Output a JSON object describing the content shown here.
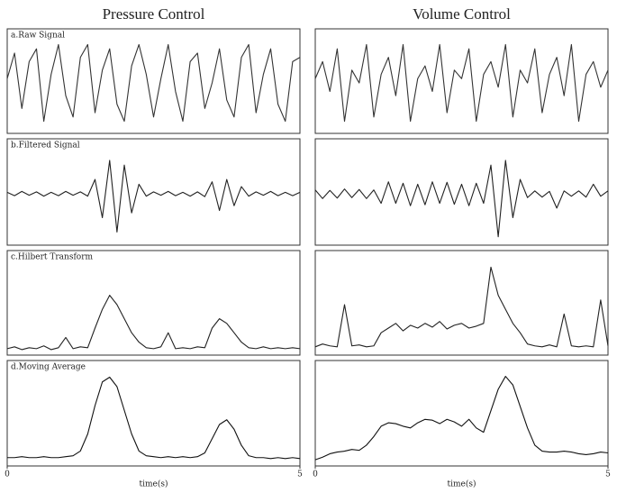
{
  "chart_data": [
    {
      "type": "line",
      "title": "Pressure Control",
      "label": "a.Raw Signal",
      "color": "#333333",
      "xlim": [
        0,
        5
      ],
      "ylim": [
        -1.1,
        1.1
      ],
      "x": [
        0,
        0.125,
        0.25,
        0.375,
        0.5,
        0.625,
        0.75,
        0.875,
        1,
        1.125,
        1.25,
        1.375,
        1.5,
        1.625,
        1.75,
        1.875,
        2,
        2.125,
        2.25,
        2.375,
        2.5,
        2.625,
        2.75,
        2.875,
        3,
        3.125,
        3.25,
        3.375,
        3.5,
        3.625,
        3.75,
        3.875,
        4,
        4.125,
        4.25,
        4.375,
        4.5,
        4.625,
        4.75,
        4.875,
        5
      ],
      "values": [
        0.1,
        0.7,
        -0.6,
        0.5,
        0.8,
        -0.9,
        0.2,
        0.9,
        -0.3,
        -0.8,
        0.6,
        0.9,
        -0.7,
        0.3,
        0.8,
        -0.5,
        -0.9,
        0.4,
        0.9,
        0.2,
        -0.8,
        0.1,
        0.9,
        -0.2,
        -0.9,
        0.5,
        0.7,
        -0.6,
        0.0,
        0.8,
        -0.4,
        -0.8,
        0.6,
        0.9,
        -0.7,
        0.2,
        0.8,
        -0.5,
        -0.9,
        0.5,
        0.6
      ]
    },
    {
      "type": "line",
      "title": "Volume Control",
      "color": "#333333",
      "xlim": [
        0,
        5
      ],
      "ylim": [
        -1.1,
        1.1
      ],
      "x": [
        0,
        0.125,
        0.25,
        0.375,
        0.5,
        0.625,
        0.75,
        0.875,
        1,
        1.125,
        1.25,
        1.375,
        1.5,
        1.625,
        1.75,
        1.875,
        2,
        2.125,
        2.25,
        2.375,
        2.5,
        2.625,
        2.75,
        2.875,
        3,
        3.125,
        3.25,
        3.375,
        3.5,
        3.625,
        3.75,
        3.875,
        4,
        4.125,
        4.25,
        4.375,
        4.5,
        4.625,
        4.75,
        4.875,
        5
      ],
      "values": [
        0.1,
        0.5,
        -0.2,
        0.8,
        -0.9,
        0.3,
        0.0,
        0.9,
        -0.8,
        0.2,
        0.6,
        -0.3,
        0.9,
        -0.9,
        0.1,
        0.4,
        -0.2,
        0.9,
        -0.7,
        0.3,
        0.1,
        0.8,
        -0.9,
        0.2,
        0.5,
        -0.1,
        0.9,
        -0.8,
        0.3,
        0.0,
        0.8,
        -0.7,
        0.2,
        0.6,
        -0.3,
        0.9,
        -0.9,
        0.2,
        0.5,
        -0.1,
        0.3
      ]
    },
    {
      "type": "line",
      "label": "b.Filtered Signal",
      "color": "#222222",
      "xlim": [
        0,
        5
      ],
      "ylim": [
        -1,
        1
      ],
      "x": [
        0,
        0.125,
        0.25,
        0.375,
        0.5,
        0.625,
        0.75,
        0.875,
        1,
        1.125,
        1.25,
        1.375,
        1.5,
        1.625,
        1.75,
        1.875,
        2,
        2.125,
        2.25,
        2.375,
        2.5,
        2.625,
        2.75,
        2.875,
        3,
        3.125,
        3.25,
        3.375,
        3.5,
        3.625,
        3.75,
        3.875,
        4,
        4.125,
        4.25,
        4.375,
        4.5,
        4.625,
        4.75,
        4.875,
        5
      ],
      "values": [
        0.03,
        -0.04,
        0.05,
        -0.03,
        0.04,
        -0.05,
        0.03,
        -0.04,
        0.05,
        -0.03,
        0.04,
        -0.05,
        0.3,
        -0.5,
        0.7,
        -0.8,
        0.6,
        -0.4,
        0.2,
        -0.05,
        0.04,
        -0.03,
        0.05,
        -0.04,
        0.03,
        -0.05,
        0.04,
        -0.06,
        0.25,
        -0.35,
        0.3,
        -0.25,
        0.15,
        -0.05,
        0.04,
        -0.03,
        0.05,
        -0.04,
        0.03,
        -0.04,
        0.03
      ]
    },
    {
      "type": "line",
      "color": "#222222",
      "xlim": [
        0,
        5
      ],
      "ylim": [
        -1,
        1
      ],
      "x": [
        0,
        0.125,
        0.25,
        0.375,
        0.5,
        0.625,
        0.75,
        0.875,
        1,
        1.125,
        1.25,
        1.375,
        1.5,
        1.625,
        1.75,
        1.875,
        2,
        2.125,
        2.25,
        2.375,
        2.5,
        2.625,
        2.75,
        2.875,
        3,
        3.125,
        3.25,
        3.375,
        3.5,
        3.625,
        3.75,
        3.875,
        4,
        4.125,
        4.25,
        4.375,
        4.5,
        4.625,
        4.75,
        4.875,
        5
      ],
      "values": [
        0.08,
        -0.1,
        0.07,
        -0.09,
        0.1,
        -0.08,
        0.09,
        -0.1,
        0.08,
        -0.2,
        0.25,
        -0.2,
        0.22,
        -0.25,
        0.2,
        -0.23,
        0.25,
        -0.2,
        0.24,
        -0.22,
        0.2,
        -0.25,
        0.22,
        -0.2,
        0.6,
        -0.9,
        0.7,
        -0.5,
        0.3,
        -0.08,
        0.06,
        -0.07,
        0.05,
        -0.3,
        0.06,
        -0.05,
        0.06,
        -0.07,
        0.2,
        -0.05,
        0.06
      ]
    },
    {
      "type": "line",
      "label": "c.Hilbert Transform",
      "color": "#222222",
      "xlim": [
        0,
        5
      ],
      "ylim": [
        0,
        1
      ],
      "x": [
        0,
        0.125,
        0.25,
        0.375,
        0.5,
        0.625,
        0.75,
        0.875,
        1,
        1.125,
        1.25,
        1.375,
        1.5,
        1.625,
        1.75,
        1.875,
        2,
        2.125,
        2.25,
        2.375,
        2.5,
        2.625,
        2.75,
        2.875,
        3,
        3.125,
        3.25,
        3.375,
        3.5,
        3.625,
        3.75,
        3.875,
        4,
        4.125,
        4.25,
        4.375,
        4.5,
        4.625,
        4.75,
        4.875,
        5
      ],
      "values": [
        0.03,
        0.05,
        0.02,
        0.04,
        0.03,
        0.06,
        0.02,
        0.04,
        0.15,
        0.03,
        0.05,
        0.04,
        0.25,
        0.45,
        0.6,
        0.5,
        0.35,
        0.2,
        0.1,
        0.04,
        0.03,
        0.05,
        0.2,
        0.03,
        0.04,
        0.03,
        0.05,
        0.04,
        0.25,
        0.35,
        0.3,
        0.2,
        0.1,
        0.04,
        0.03,
        0.05,
        0.03,
        0.04,
        0.03,
        0.04,
        0.03
      ]
    },
    {
      "type": "line",
      "color": "#222222",
      "xlim": [
        0,
        5
      ],
      "ylim": [
        0,
        1
      ],
      "x": [
        0,
        0.125,
        0.25,
        0.375,
        0.5,
        0.625,
        0.75,
        0.875,
        1,
        1.125,
        1.25,
        1.375,
        1.5,
        1.625,
        1.75,
        1.875,
        2,
        2.125,
        2.25,
        2.375,
        2.5,
        2.625,
        2.75,
        2.875,
        3,
        3.125,
        3.25,
        3.375,
        3.5,
        3.625,
        3.75,
        3.875,
        4,
        4.125,
        4.25,
        4.375,
        4.5,
        4.625,
        4.75,
        4.875,
        5
      ],
      "values": [
        0.05,
        0.08,
        0.06,
        0.05,
        0.5,
        0.06,
        0.07,
        0.05,
        0.06,
        0.2,
        0.25,
        0.3,
        0.22,
        0.28,
        0.25,
        0.3,
        0.26,
        0.32,
        0.24,
        0.28,
        0.3,
        0.25,
        0.27,
        0.3,
        0.9,
        0.6,
        0.45,
        0.3,
        0.2,
        0.08,
        0.06,
        0.05,
        0.07,
        0.05,
        0.4,
        0.06,
        0.05,
        0.06,
        0.05,
        0.55,
        0.06
      ]
    },
    {
      "type": "line",
      "label": "d.Moving Average",
      "color": "#111111",
      "xlim": [
        0,
        5
      ],
      "ylim": [
        0,
        1
      ],
      "xticks": [
        0,
        5
      ],
      "xlabel": "time(s)",
      "x": [
        0,
        0.125,
        0.25,
        0.375,
        0.5,
        0.625,
        0.75,
        0.875,
        1,
        1.125,
        1.25,
        1.375,
        1.5,
        1.625,
        1.75,
        1.875,
        2,
        2.125,
        2.25,
        2.375,
        2.5,
        2.625,
        2.75,
        2.875,
        3,
        3.125,
        3.25,
        3.375,
        3.5,
        3.625,
        3.75,
        3.875,
        4,
        4.125,
        4.25,
        4.375,
        4.5,
        4.625,
        4.75,
        4.875,
        5
      ],
      "values": [
        0.05,
        0.05,
        0.06,
        0.05,
        0.05,
        0.06,
        0.05,
        0.05,
        0.06,
        0.07,
        0.12,
        0.3,
        0.6,
        0.85,
        0.9,
        0.8,
        0.55,
        0.3,
        0.12,
        0.07,
        0.06,
        0.05,
        0.06,
        0.05,
        0.06,
        0.05,
        0.06,
        0.1,
        0.25,
        0.4,
        0.45,
        0.35,
        0.18,
        0.07,
        0.05,
        0.05,
        0.04,
        0.05,
        0.04,
        0.05,
        0.04
      ]
    },
    {
      "type": "line",
      "color": "#111111",
      "xlim": [
        0,
        5
      ],
      "ylim": [
        0,
        1.1
      ],
      "xticks": [
        0,
        5
      ],
      "xlabel": "time(s)",
      "x": [
        0,
        0.125,
        0.25,
        0.375,
        0.5,
        0.625,
        0.75,
        0.875,
        1,
        1.125,
        1.25,
        1.375,
        1.5,
        1.625,
        1.75,
        1.875,
        2,
        2.125,
        2.25,
        2.375,
        2.5,
        2.625,
        2.75,
        2.875,
        3,
        3.125,
        3.25,
        3.375,
        3.5,
        3.625,
        3.75,
        3.875,
        4,
        4.125,
        4.25,
        4.375,
        4.5,
        4.625,
        4.75,
        4.875,
        5
      ],
      "values": [
        0.03,
        0.06,
        0.1,
        0.12,
        0.13,
        0.15,
        0.14,
        0.2,
        0.3,
        0.42,
        0.46,
        0.45,
        0.42,
        0.4,
        0.46,
        0.5,
        0.49,
        0.45,
        0.5,
        0.47,
        0.42,
        0.5,
        0.4,
        0.35,
        0.6,
        0.85,
        1.0,
        0.9,
        0.65,
        0.4,
        0.2,
        0.13,
        0.12,
        0.12,
        0.13,
        0.12,
        0.1,
        0.09,
        0.1,
        0.12,
        0.11
      ]
    }
  ]
}
